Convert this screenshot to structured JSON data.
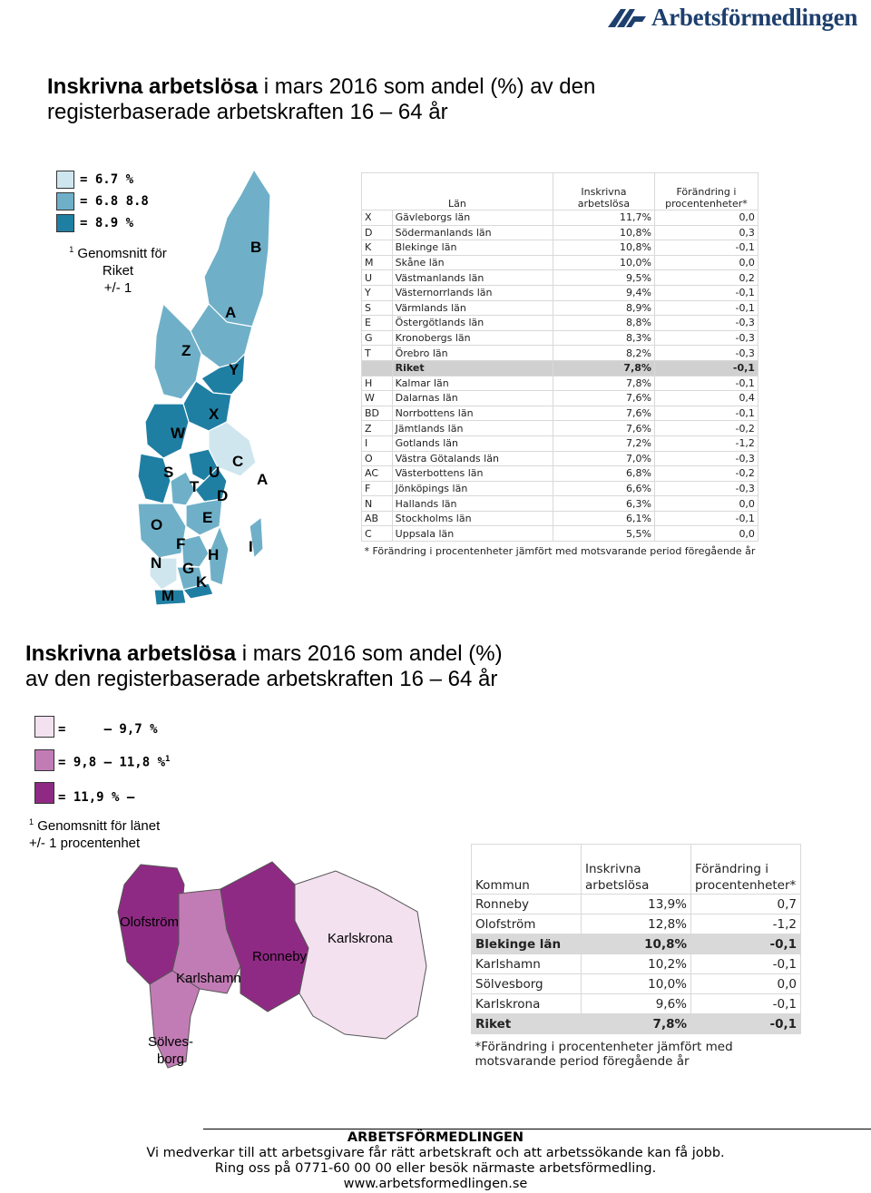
{
  "header": {
    "logo_text": "Arbetsförmedlingen"
  },
  "section1": {
    "title_bold": "Inskrivna arbetslösa",
    "title_rest": " i mars 2016 som andel (%) av den",
    "title_line2": "registerbaserade arbetskraften 16 – 64 år",
    "legend": [
      {
        "label": "= 6.7 %",
        "color": "#cfe6ee"
      },
      {
        "label": "= 6.8 8.8",
        "color": "#6fb0c8"
      },
      {
        "label": "= 8.9 %",
        "color": "#1f7fa3"
      }
    ],
    "note_sup": "1",
    "note_lines": [
      "Genomsnitt för",
      "Riket",
      "+/- 1"
    ],
    "map_labels": [
      "B",
      "A",
      "Z",
      "Y",
      "W",
      "X",
      "S",
      "U",
      "C",
      "T",
      "D",
      "A",
      "E",
      "O",
      "F",
      "H",
      "I",
      "N",
      "G",
      "K",
      "M"
    ],
    "table": {
      "headers": {
        "lan": "Län",
        "inskrivna_line1": "Inskrivna",
        "inskrivna_line2": "arbetslösa",
        "forandring_line1": "Förändring i",
        "forandring_line2": "procentenheter*"
      },
      "rows": [
        {
          "code": "X",
          "name": "Gävleborgs län",
          "value": "11,7%",
          "change": "0,0"
        },
        {
          "code": "D",
          "name": "Södermanlands län",
          "value": "10,8%",
          "change": "0,3"
        },
        {
          "code": "K",
          "name": "Blekinge län",
          "value": "10,8%",
          "change": "-0,1"
        },
        {
          "code": "M",
          "name": "Skåne län",
          "value": "10,0%",
          "change": "0,0"
        },
        {
          "code": "U",
          "name": "Västmanlands län",
          "value": "9,5%",
          "change": "0,2"
        },
        {
          "code": "Y",
          "name": "Västernorrlands län",
          "value": "9,4%",
          "change": "-0,1"
        },
        {
          "code": "S",
          "name": "Värmlands län",
          "value": "8,9%",
          "change": "-0,1"
        },
        {
          "code": "E",
          "name": "Östergötlands län",
          "value": "8,8%",
          "change": "-0,3"
        },
        {
          "code": "G",
          "name": "Kronobergs län",
          "value": "8,3%",
          "change": "-0,3"
        },
        {
          "code": "T",
          "name": "Örebro län",
          "value": "8,2%",
          "change": "-0,3"
        },
        {
          "code": "",
          "name": "Riket",
          "value": "7,8%",
          "change": "-0,1",
          "highlight": true
        },
        {
          "code": "H",
          "name": "Kalmar län",
          "value": "7,8%",
          "change": "-0,1"
        },
        {
          "code": "W",
          "name": "Dalarnas län",
          "value": "7,6%",
          "change": "0,4"
        },
        {
          "code": "BD",
          "name": "Norrbottens län",
          "value": "7,6%",
          "change": "-0,1"
        },
        {
          "code": "Z",
          "name": "Jämtlands län",
          "value": "7,6%",
          "change": "-0,2"
        },
        {
          "code": "I",
          "name": "Gotlands län",
          "value": "7,2%",
          "change": "-1,2"
        },
        {
          "code": "O",
          "name": "Västra Götalands län",
          "value": "7,0%",
          "change": "-0,3"
        },
        {
          "code": "AC",
          "name": "Västerbottens län",
          "value": "6,8%",
          "change": "-0,2"
        },
        {
          "code": "F",
          "name": "Jönköpings län",
          "value": "6,6%",
          "change": "-0,3"
        },
        {
          "code": "N",
          "name": "Hallands län",
          "value": "6,3%",
          "change": "0,0"
        },
        {
          "code": "AB",
          "name": "Stockholms län",
          "value": "6,1%",
          "change": "-0,1"
        },
        {
          "code": "C",
          "name": "Uppsala län",
          "value": "5,5%",
          "change": "0,0"
        }
      ],
      "footnote": "* Förändring i procentenheter jämfört med motsvarande period föregående år"
    }
  },
  "section2": {
    "title_bold": "Inskrivna arbetslösa",
    "title_rest": " i mars 2016 som andel (%)",
    "title_line2": "av den registerbaserade arbetskraften 16 – 64 år",
    "legend": [
      {
        "label": "=     – 9,7 %",
        "color": "#f3e1ef"
      },
      {
        "label": "= 9,8 – 11,8 %",
        "color": "#c27cb5",
        "sup": "1"
      },
      {
        "label": "= 11,9 % –",
        "color": "#8f2a84"
      }
    ],
    "note_sup": "1",
    "note_lines": [
      "Genomsnitt för länet",
      "+/- 1 procentenhet"
    ],
    "map_labels": {
      "olofstrom": "Olofström",
      "karlshamn": "Karlshamn",
      "ronneby": "Ronneby",
      "karlskrona": "Karlskrona",
      "solvesborg_1": "Sölves-",
      "solvesborg_2": "borg"
    },
    "table": {
      "headers": {
        "kommun": "Kommun",
        "inskrivna_line1": "Inskrivna",
        "inskrivna_line2": "arbetslösa",
        "forandring_line1": "Förändring i",
        "forandring_line2": "procentenheter*"
      },
      "rows": [
        {
          "name": "Ronneby",
          "value": "13,9%",
          "change": "0,7"
        },
        {
          "name": "Olofström",
          "value": "12,8%",
          "change": "-1,2"
        },
        {
          "name": "Blekinge län",
          "value": "10,8%",
          "change": "-0,1",
          "highlight": true
        },
        {
          "name": "Karlshamn",
          "value": "10,2%",
          "change": "-0,1"
        },
        {
          "name": "Sölvesborg",
          "value": "10,0%",
          "change": "0,0"
        },
        {
          "name": "Karlskrona",
          "value": "9,6%",
          "change": "-0,1"
        },
        {
          "name": "Riket",
          "value": "7,8%",
          "change": "-0,1",
          "highlight": true
        }
      ],
      "footnote": "*Förändring i procentenheter jämfört med motsvarande period föregående år"
    }
  },
  "footer": {
    "org": "ARBETSFÖRMEDLINGEN",
    "line1": "Vi medverkar till att arbetsgivare får rätt arbetskraft och att arbetssökande kan få jobb.",
    "line2": "Ring oss på 0771-60 00 00 eller besök närmaste arbetsförmedling.",
    "url": "www.arbetsformedlingen.se"
  }
}
